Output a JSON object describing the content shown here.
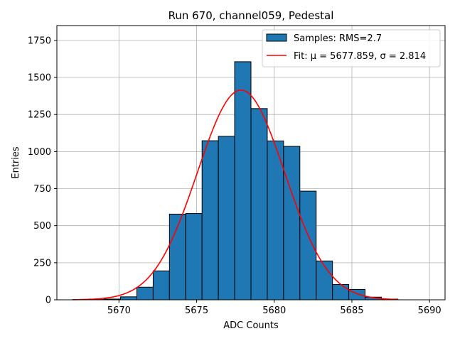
{
  "chart_data": {
    "type": "bar",
    "title": "Run 670, channel059, Pedestal",
    "xlabel": "ADC Counts",
    "ylabel": "Entries",
    "xlim": [
      5666,
      5691
    ],
    "ylim": [
      0,
      1850
    ],
    "grid": true,
    "legend_position": "top-right",
    "xticks": [
      5670,
      5675,
      5680,
      5685,
      5690
    ],
    "yticks": [
      0,
      250,
      500,
      750,
      1000,
      1250,
      1500,
      1750
    ],
    "histogram": {
      "name": "Samples: RMS=2.7",
      "color": "#1f77b4",
      "bin_width": 1.05,
      "bin_left_edges": [
        5668.0,
        5669.05,
        5670.1,
        5671.15,
        5672.2,
        5673.25,
        5674.3,
        5675.35,
        5676.4,
        5677.45,
        5678.5,
        5679.55,
        5680.6,
        5681.65,
        5682.7,
        5683.75,
        5684.8,
        5685.85,
        5686.9
      ],
      "counts": [
        2,
        5,
        20,
        85,
        195,
        578,
        582,
        1073,
        1103,
        1606,
        1290,
        1072,
        1035,
        733,
        262,
        103,
        70,
        18,
        5
      ]
    },
    "fit": {
      "name": "Fit: μ = 5677.859, σ = 2.814",
      "color": "#ff0000",
      "mu": 5677.859,
      "sigma": 2.814,
      "amplitude": 1415,
      "x_range": [
        5667,
        5688
      ]
    }
  }
}
